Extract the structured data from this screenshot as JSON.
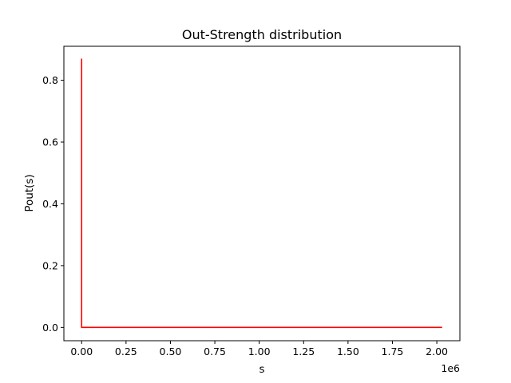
{
  "chart_data": {
    "type": "line",
    "title": "Out-Strength distribution",
    "xlabel": "s",
    "ylabel": "Pout(s)",
    "x_offset_label": "1e6",
    "xlim": [
      -0.1,
      2.13
    ],
    "ylim": [
      -0.043,
      0.91
    ],
    "x_ticks": [
      0,
      0.25,
      0.5,
      0.75,
      1.0,
      1.25,
      1.5,
      1.75,
      2.0
    ],
    "x_tick_labels": [
      "0.00",
      "0.25",
      "0.50",
      "0.75",
      "1.00",
      "1.25",
      "1.50",
      "1.75",
      "2.00"
    ],
    "y_ticks": [
      0,
      0.2,
      0.4,
      0.6,
      0.8
    ],
    "y_tick_labels": [
      "0.0",
      "0.2",
      "0.4",
      "0.6",
      "0.8"
    ],
    "grid": false,
    "series": [
      {
        "color": "#ff0000",
        "x": [
          0,
          0,
          2.03
        ],
        "y": [
          0.87,
          0.0,
          0.0
        ]
      }
    ]
  }
}
